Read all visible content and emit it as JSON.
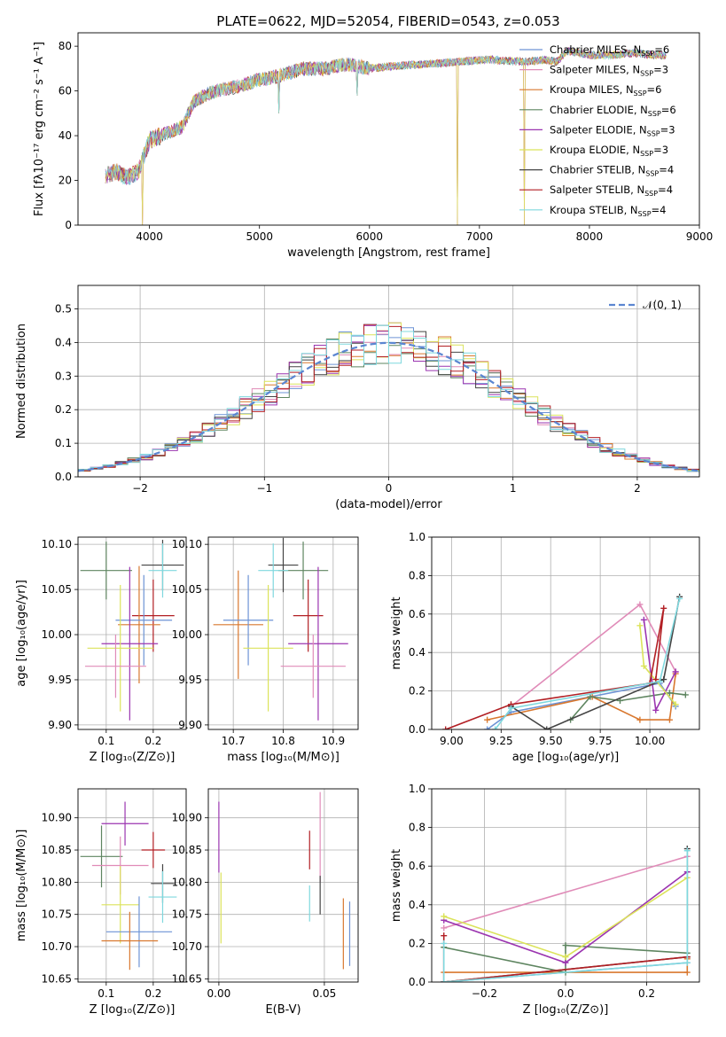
{
  "figure_title": "PLATE=0622, MJD=52054, FIBERID=0543, z=0.053",
  "chart_data": [
    {
      "id": "spectrum",
      "type": "line",
      "xlabel": "wavelength [Angstrom, rest frame]",
      "ylabel": "Flux [fλ10⁻¹⁷ erg cm⁻² s⁻¹ A⁻¹]",
      "xlim": [
        3350,
        9000
      ],
      "ylim": [
        0,
        86
      ],
      "xticks": [
        4000,
        5000,
        6000,
        7000,
        8000,
        9000
      ],
      "yticks": [
        0,
        20,
        40,
        60,
        80
      ],
      "grid": false,
      "legend_position": "top-right",
      "continuum": {
        "x": [
          3600,
          3700,
          3800,
          3900,
          4000,
          4100,
          4200,
          4300,
          4400,
          4500,
          4600,
          4800,
          5000,
          5200,
          5400,
          5600,
          5800,
          6000,
          6200,
          6500,
          6800,
          7100,
          7400,
          7600,
          7700,
          7800,
          8000,
          8200,
          8400,
          8600,
          8700
        ],
        "y": [
          22,
          24,
          21,
          24,
          38,
          40,
          42,
          44,
          55,
          58,
          60,
          62,
          65,
          67,
          70,
          70,
          72,
          70,
          71,
          72,
          73,
          74,
          73,
          74,
          73,
          78,
          76,
          76,
          77,
          76,
          76
        ]
      },
      "dips": [
        {
          "x": 3934,
          "y": 0
        },
        {
          "x": 6800,
          "y": 0
        },
        {
          "x": 7410,
          "y": 0
        },
        {
          "x": 5175,
          "y": 50
        },
        {
          "x": 5890,
          "y": 58
        }
      ],
      "series": [
        {
          "name": "Chabrier MILES, N",
          "sub": "SSP",
          "suffix": "=6",
          "color": "#6d93d5"
        },
        {
          "name": "Salpeter MILES, N",
          "sub": "SSP",
          "suffix": "=3",
          "color": "#e08bb8"
        },
        {
          "name": "Kroupa MILES, N",
          "sub": "SSP",
          "suffix": "=6",
          "color": "#d9782f"
        },
        {
          "name": "Chabrier ELODIE, N",
          "sub": "SSP",
          "suffix": "=6",
          "color": "#5e8560"
        },
        {
          "name": "Salpeter ELODIE, N",
          "sub": "SSP",
          "suffix": "=3",
          "color": "#9b35b0"
        },
        {
          "name": "Kroupa ELODIE, N",
          "sub": "SSP",
          "suffix": "=3",
          "color": "#dbe35a"
        },
        {
          "name": "Chabrier STELIB, N",
          "sub": "SSP",
          "suffix": "=4",
          "color": "#444444"
        },
        {
          "name": "Salpeter STELIB, N",
          "sub": "SSP",
          "suffix": "=4",
          "color": "#b21f24"
        },
        {
          "name": "Kroupa STELIB, N",
          "sub": "SSP",
          "suffix": "=4",
          "color": "#7fd8de"
        }
      ]
    },
    {
      "id": "residuals",
      "type": "histogram",
      "xlabel": "(data-model)/error",
      "ylabel": "Normed distribution",
      "xlim": [
        -2.5,
        2.5
      ],
      "ylim": [
        0,
        0.57
      ],
      "xticks": [
        -2,
        -1,
        0,
        1,
        2
      ],
      "xtick_labels": [
        "−2",
        "−1",
        "0",
        "1",
        "2"
      ],
      "yticks": [
        0.0,
        0.1,
        0.2,
        0.3,
        0.4,
        0.5
      ],
      "ytick_labels": [
        "0.0",
        "0.1",
        "0.2",
        "0.3",
        "0.4",
        "0.5"
      ],
      "grid": true,
      "legend": "𝒩(0, 1)",
      "legend_position": "top-right",
      "bin_width": 0.1
    },
    {
      "id": "age_vs_Z",
      "type": "errorbar",
      "xlabel": "Z [log₁₀(Z/Z⊙)]",
      "ylabel": "age  [log₁₀(age/yr)]",
      "xlim": [
        0.04,
        0.27
      ],
      "ylim": [
        9.895,
        10.108
      ],
      "xticks": [
        0.1,
        0.2
      ],
      "xtick_labels": [
        "0.1",
        "0.2"
      ],
      "yticks": [
        9.9,
        9.95,
        10.0,
        10.05,
        10.1
      ],
      "ytick_labels": [
        "9.90",
        "9.95",
        "10.00",
        "10.05",
        "10.10"
      ],
      "grid": true,
      "points": [
        {
          "x": 0.1,
          "y": 10.071,
          "xerr": 0.055,
          "yerr": 0.032,
          "color": "#5e8560"
        },
        {
          "x": 0.22,
          "y": 10.077,
          "xerr": 0.045,
          "yerr": 0.028,
          "color": "#444444"
        },
        {
          "x": 0.22,
          "y": 10.071,
          "xerr": 0.03,
          "yerr": 0.03,
          "color": "#7fd8de"
        },
        {
          "x": 0.2,
          "y": 10.021,
          "xerr": 0.045,
          "yerr": 0.04,
          "color": "#b21f24"
        },
        {
          "x": 0.17,
          "y": 10.011,
          "xerr": 0.045,
          "yerr": 0.065,
          "color": "#d9782f"
        },
        {
          "x": 0.18,
          "y": 10.016,
          "xerr": 0.06,
          "yerr": 0.05,
          "color": "#6d93d5"
        },
        {
          "x": 0.15,
          "y": 9.99,
          "xerr": 0.06,
          "yerr": 0.085,
          "color": "#9b35b0"
        },
        {
          "x": 0.13,
          "y": 9.985,
          "xerr": 0.07,
          "yerr": 0.07,
          "color": "#dbe35a"
        },
        {
          "x": 0.12,
          "y": 9.965,
          "xerr": 0.065,
          "yerr": 0.035,
          "color": "#e08bb8"
        }
      ]
    },
    {
      "id": "age_vs_mass",
      "type": "errorbar",
      "xlabel": "mass [log₁₀(M/M⊙)]",
      "ylabel": "",
      "xlim": [
        10.65,
        10.95
      ],
      "ylim": [
        9.895,
        10.108
      ],
      "xticks": [
        10.7,
        10.8,
        10.9
      ],
      "xtick_labels": [
        "10.7",
        "10.8",
        "10.9"
      ],
      "yticks": [
        9.9,
        9.95,
        10.0,
        10.05,
        10.1
      ],
      "ytick_labels": [
        "9.90",
        "9.95",
        "10.00",
        "10.05",
        "10.10"
      ],
      "grid": true,
      "points": [
        {
          "x": 10.84,
          "y": 10.071,
          "xerr": 0.05,
          "yerr": 0.032,
          "color": "#5e8560"
        },
        {
          "x": 10.8,
          "y": 10.077,
          "xerr": 0.03,
          "yerr": 0.03,
          "color": "#444444"
        },
        {
          "x": 10.78,
          "y": 10.071,
          "xerr": 0.03,
          "yerr": 0.03,
          "color": "#7fd8de"
        },
        {
          "x": 10.85,
          "y": 10.021,
          "xerr": 0.03,
          "yerr": 0.04,
          "color": "#b21f24"
        },
        {
          "x": 10.71,
          "y": 10.011,
          "xerr": 0.05,
          "yerr": 0.06,
          "color": "#d9782f"
        },
        {
          "x": 10.73,
          "y": 10.016,
          "xerr": 0.05,
          "yerr": 0.05,
          "color": "#6d93d5"
        },
        {
          "x": 10.87,
          "y": 9.99,
          "xerr": 0.06,
          "yerr": 0.085,
          "color": "#9b35b0"
        },
        {
          "x": 10.77,
          "y": 9.985,
          "xerr": 0.05,
          "yerr": 0.07,
          "color": "#dbe35a"
        },
        {
          "x": 10.86,
          "y": 9.965,
          "xerr": 0.065,
          "yerr": 0.035,
          "color": "#e08bb8"
        }
      ]
    },
    {
      "id": "weight_vs_age",
      "type": "line",
      "xlabel": "age  [log₁₀(age/yr)]",
      "ylabel": "mass weight",
      "xlim": [
        8.9,
        10.25
      ],
      "ylim": [
        0,
        1.0
      ],
      "xticks": [
        9.0,
        9.25,
        9.5,
        9.75,
        10.0
      ],
      "xtick_labels": [
        "9.00",
        "9.25",
        "9.50",
        "9.75",
        "10.00"
      ],
      "yticks": [
        0,
        0.2,
        0.4,
        0.6,
        0.8,
        1.0
      ],
      "ytick_labels": [
        "0.0",
        "0.2",
        "0.4",
        "0.6",
        "0.8",
        "1.0"
      ],
      "grid": true,
      "series": [
        {
          "color": "#6d93d5",
          "points": [
            [
              9.18,
              0.0
            ],
            [
              9.3,
              0.09
            ],
            [
              10.05,
              0.24
            ],
            [
              10.13,
              0.12
            ]
          ]
        },
        {
          "color": "#e08bb8",
          "points": [
            [
              9.3,
              0.12
            ],
            [
              9.95,
              0.65
            ],
            [
              10.13,
              0.3
            ]
          ]
        },
        {
          "color": "#d9782f",
          "points": [
            [
              9.18,
              0.05
            ],
            [
              9.71,
              0.17
            ],
            [
              9.95,
              0.05
            ],
            [
              10.1,
              0.05
            ],
            [
              10.13,
              0.29
            ]
          ]
        },
        {
          "color": "#5e8560",
          "points": [
            [
              9.6,
              0.05
            ],
            [
              9.7,
              0.17
            ],
            [
              9.85,
              0.15
            ],
            [
              10.1,
              0.19
            ],
            [
              10.18,
              0.18
            ]
          ]
        },
        {
          "color": "#9b35b0",
          "points": [
            [
              9.97,
              0.57
            ],
            [
              10.03,
              0.1
            ],
            [
              10.13,
              0.3
            ]
          ]
        },
        {
          "color": "#dbe35a",
          "points": [
            [
              9.95,
              0.54
            ],
            [
              9.97,
              0.33
            ],
            [
              10.13,
              0.13
            ]
          ]
        },
        {
          "color": "#444444",
          "points": [
            [
              9.3,
              0.12
            ],
            [
              9.48,
              0.0
            ],
            [
              10.07,
              0.26
            ],
            [
              10.15,
              0.69
            ]
          ]
        },
        {
          "color": "#b21f24",
          "points": [
            [
              8.97,
              0.0
            ],
            [
              9.3,
              0.13
            ],
            [
              10.0,
              0.24
            ],
            [
              10.07,
              0.63
            ],
            [
              10.03,
              0.26
            ]
          ]
        },
        {
          "color": "#7fd8de",
          "points": [
            [
              9.22,
              0.0
            ],
            [
              9.3,
              0.11
            ],
            [
              10.05,
              0.25
            ],
            [
              10.15,
              0.68
            ]
          ]
        }
      ]
    },
    {
      "id": "mass_vs_Z",
      "type": "errorbar",
      "xlabel": "Z [log₁₀(Z/Z⊙)]",
      "ylabel": "mass [log₁₀(M/M⊙)]",
      "xlim": [
        0.04,
        0.27
      ],
      "ylim": [
        10.645,
        10.945
      ],
      "xticks": [
        0.1,
        0.2
      ],
      "xtick_labels": [
        "0.1",
        "0.2"
      ],
      "yticks": [
        10.65,
        10.7,
        10.75,
        10.8,
        10.85,
        10.9
      ],
      "ytick_labels": [
        "10.65",
        "10.70",
        "10.75",
        "10.80",
        "10.85",
        "10.90"
      ],
      "grid": true,
      "points": [
        {
          "x": 0.09,
          "y": 10.84,
          "xerr": 0.045,
          "yerr": 0.048,
          "color": "#5e8560"
        },
        {
          "x": 0.14,
          "y": 10.891,
          "xerr": 0.05,
          "yerr": 0.034,
          "color": "#9b35b0"
        },
        {
          "x": 0.13,
          "y": 10.826,
          "xerr": 0.06,
          "yerr": 0.045,
          "color": "#e08bb8"
        },
        {
          "x": 0.2,
          "y": 10.85,
          "xerr": 0.025,
          "yerr": 0.028,
          "color": "#b21f24"
        },
        {
          "x": 0.22,
          "y": 10.798,
          "xerr": 0.025,
          "yerr": 0.03,
          "color": "#444444"
        },
        {
          "x": 0.22,
          "y": 10.777,
          "xerr": 0.03,
          "yerr": 0.04,
          "color": "#7fd8de"
        },
        {
          "x": 0.13,
          "y": 10.765,
          "xerr": 0.04,
          "yerr": 0.06,
          "color": "#dbe35a"
        },
        {
          "x": 0.17,
          "y": 10.723,
          "xerr": 0.07,
          "yerr": 0.055,
          "color": "#6d93d5"
        },
        {
          "x": 0.15,
          "y": 10.709,
          "xerr": 0.06,
          "yerr": 0.045,
          "color": "#d9782f"
        }
      ]
    },
    {
      "id": "mass_vs_ebv",
      "type": "errorbar",
      "xlabel": "E(B-V)",
      "ylabel": "",
      "xlim": [
        -0.005,
        0.066
      ],
      "ylim": [
        10.645,
        10.945
      ],
      "xticks": [
        0.0,
        0.05
      ],
      "xtick_labels": [
        "0.00",
        "0.05"
      ],
      "yticks": [
        10.65,
        10.7,
        10.75,
        10.8,
        10.85,
        10.9
      ],
      "ytick_labels": [
        "10.65",
        "10.70",
        "10.75",
        "10.80",
        "10.85",
        "10.90"
      ],
      "grid": true,
      "points": [
        {
          "x": 0.0,
          "y": 10.87,
          "xerr": 0,
          "yerr": 0.055,
          "color": "#9b35b0"
        },
        {
          "x": 0.001,
          "y": 10.76,
          "xerr": 0,
          "yerr": 0.055,
          "color": "#dbe35a"
        },
        {
          "x": 0.043,
          "y": 10.85,
          "xerr": 0,
          "yerr": 0.03,
          "color": "#b21f24"
        },
        {
          "x": 0.048,
          "y": 10.87,
          "xerr": 0,
          "yerr": 0.07,
          "color": "#e08bb8"
        },
        {
          "x": 0.048,
          "y": 10.78,
          "xerr": 0,
          "yerr": 0.03,
          "color": "#444444"
        },
        {
          "x": 0.043,
          "y": 10.767,
          "xerr": 0,
          "yerr": 0.028,
          "color": "#7fd8de"
        },
        {
          "x": 0.059,
          "y": 10.72,
          "xerr": 0,
          "yerr": 0.055,
          "color": "#d9782f"
        },
        {
          "x": 0.062,
          "y": 10.72,
          "xerr": 0,
          "yerr": 0.05,
          "color": "#6d93d5"
        }
      ]
    },
    {
      "id": "weight_vs_Z",
      "type": "line",
      "xlabel": "Z [log₁₀(Z/Z⊙)]",
      "ylabel": "mass weight",
      "xlim": [
        -0.33,
        0.33
      ],
      "ylim": [
        0,
        1.0
      ],
      "xticks": [
        -0.2,
        0.0,
        0.2
      ],
      "xtick_labels": [
        "−0.2",
        "0.0",
        "0.2"
      ],
      "yticks": [
        0,
        0.2,
        0.4,
        0.6,
        0.8,
        1.0
      ],
      "ytick_labels": [
        "0.0",
        "0.2",
        "0.4",
        "0.6",
        "0.8",
        "1.0"
      ],
      "grid": true,
      "series": [
        {
          "color": "#6d93d5",
          "points": [
            [
              -0.3,
              0.0
            ],
            [
              0.3,
              0.1
            ]
          ]
        },
        {
          "color": "#e08bb8",
          "points": [
            [
              -0.3,
              0.28
            ],
            [
              0.3,
              0.65
            ]
          ]
        },
        {
          "color": "#d9782f",
          "points": [
            [
              -0.3,
              0.05
            ],
            [
              0.3,
              0.05
            ],
            [
              0.3,
              0.12
            ]
          ]
        },
        {
          "color": "#5e8560",
          "points": [
            [
              -0.3,
              0.18
            ],
            [
              0.0,
              0.05
            ],
            [
              0.0,
              0.19
            ],
            [
              0.3,
              0.15
            ]
          ]
        },
        {
          "color": "#9b35b0",
          "points": [
            [
              -0.3,
              0.32
            ],
            [
              0.0,
              0.1
            ],
            [
              0.3,
              0.57
            ]
          ]
        },
        {
          "color": "#dbe35a",
          "points": [
            [
              -0.3,
              0.34
            ],
            [
              0.0,
              0.13
            ],
            [
              0.3,
              0.54
            ]
          ]
        },
        {
          "color": "#444444",
          "points": [
            [
              -0.3,
              0.0
            ],
            [
              0.3,
              0.13
            ],
            [
              0.3,
              0.69
            ]
          ]
        },
        {
          "color": "#b21f24",
          "points": [
            [
              -0.3,
              0.24
            ],
            [
              -0.3,
              0.0
            ],
            [
              0.3,
              0.13
            ]
          ]
        },
        {
          "color": "#7fd8de",
          "points": [
            [
              -0.3,
              0.2
            ],
            [
              -0.3,
              0.0
            ],
            [
              0.3,
              0.1
            ],
            [
              0.3,
              0.68
            ]
          ]
        }
      ]
    }
  ]
}
